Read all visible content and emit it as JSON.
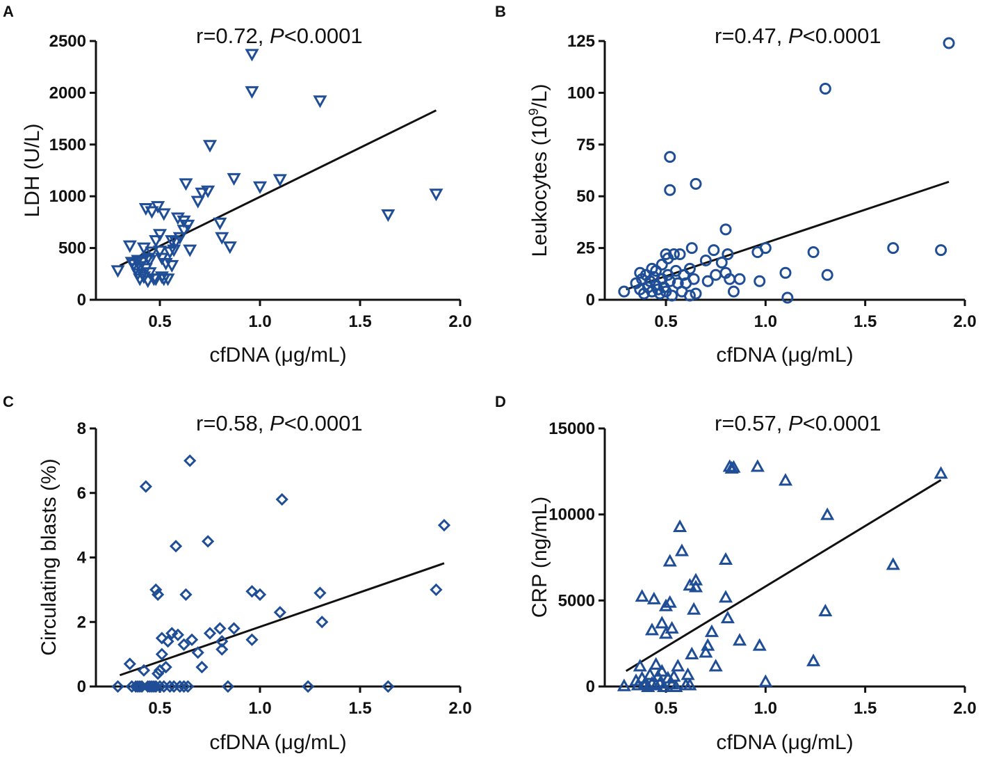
{
  "chart_data": [
    {
      "type": "scatter",
      "panel_label": "A",
      "title": "r=0.72, ",
      "title_p": "P",
      "title_rest": "<0.0001",
      "xlabel": "cfDNA (μg/mL)",
      "ylabel": "LDH (U/L)",
      "ylabel_sup": "",
      "ylabel_tail": "",
      "marker": "triangle-down",
      "xlim": [
        0.2,
        2.0
      ],
      "ylim": [
        0,
        2500
      ],
      "xticks": [
        0.5,
        1.0,
        1.5,
        2.0
      ],
      "xtick_labels": [
        "0.5",
        "1.0",
        "1.5",
        "2.0"
      ],
      "yticks": [
        0,
        500,
        1000,
        1500,
        2000,
        2500
      ],
      "ytick_labels": [
        "0",
        "500",
        "1000",
        "1500",
        "2000",
        "2500"
      ],
      "fit": [
        [
          0.3,
          330
        ],
        [
          1.88,
          1830
        ]
      ],
      "points": [
        [
          0.29,
          280
        ],
        [
          0.35,
          520
        ],
        [
          0.36,
          360
        ],
        [
          0.37,
          340
        ],
        [
          0.38,
          300
        ],
        [
          0.39,
          250
        ],
        [
          0.39,
          380
        ],
        [
          0.4,
          200
        ],
        [
          0.4,
          320
        ],
        [
          0.41,
          360
        ],
        [
          0.42,
          220
        ],
        [
          0.42,
          500
        ],
        [
          0.43,
          300
        ],
        [
          0.43,
          880
        ],
        [
          0.44,
          400
        ],
        [
          0.44,
          180
        ],
        [
          0.45,
          380
        ],
        [
          0.45,
          260
        ],
        [
          0.46,
          850
        ],
        [
          0.46,
          460
        ],
        [
          0.47,
          200
        ],
        [
          0.48,
          570
        ],
        [
          0.48,
          200
        ],
        [
          0.49,
          900
        ],
        [
          0.5,
          630
        ],
        [
          0.5,
          470
        ],
        [
          0.51,
          400
        ],
        [
          0.51,
          220
        ],
        [
          0.52,
          830
        ],
        [
          0.52,
          200
        ],
        [
          0.53,
          350
        ],
        [
          0.54,
          200
        ],
        [
          0.55,
          460
        ],
        [
          0.56,
          570
        ],
        [
          0.56,
          330
        ],
        [
          0.57,
          480
        ],
        [
          0.58,
          560
        ],
        [
          0.59,
          790
        ],
        [
          0.6,
          600
        ],
        [
          0.62,
          670
        ],
        [
          0.62,
          760
        ],
        [
          0.63,
          1120
        ],
        [
          0.64,
          720
        ],
        [
          0.65,
          480
        ],
        [
          0.69,
          950
        ],
        [
          0.71,
          1030
        ],
        [
          0.74,
          1050
        ],
        [
          0.75,
          1490
        ],
        [
          0.8,
          740
        ],
        [
          0.81,
          600
        ],
        [
          0.85,
          510
        ],
        [
          0.87,
          1170
        ],
        [
          0.96,
          2370
        ],
        [
          0.96,
          2010
        ],
        [
          1.0,
          1090
        ],
        [
          1.1,
          1160
        ],
        [
          1.3,
          1920
        ],
        [
          1.64,
          820
        ],
        [
          1.88,
          1020
        ]
      ],
      "colors": {
        "marker": "#1f4e96",
        "line": "#111111"
      }
    },
    {
      "type": "scatter",
      "panel_label": "B",
      "title": "r=0.47, ",
      "title_p": "P",
      "title_rest": "<0.0001",
      "xlabel": "cfDNA (μg/mL)",
      "ylabel": "Leukocytes (10",
      "ylabel_sup": "9",
      "ylabel_tail": "/L)",
      "marker": "circle",
      "xlim": [
        0.2,
        2.0
      ],
      "ylim": [
        0,
        125
      ],
      "xticks": [
        0.5,
        1.0,
        1.5,
        2.0
      ],
      "xtick_labels": [
        "0.5",
        "1.0",
        "1.5",
        "2.0"
      ],
      "yticks": [
        0,
        25,
        50,
        75,
        100,
        125
      ],
      "ytick_labels": [
        "0",
        "25",
        "50",
        "75",
        "100",
        "125"
      ],
      "fit": [
        [
          0.3,
          5
        ],
        [
          1.92,
          57
        ]
      ],
      "points": [
        [
          0.29,
          4
        ],
        [
          0.35,
          8
        ],
        [
          0.37,
          13
        ],
        [
          0.37,
          5
        ],
        [
          0.38,
          10
        ],
        [
          0.39,
          3
        ],
        [
          0.4,
          12
        ],
        [
          0.41,
          6
        ],
        [
          0.42,
          9
        ],
        [
          0.43,
          15
        ],
        [
          0.43,
          4
        ],
        [
          0.44,
          11
        ],
        [
          0.45,
          7
        ],
        [
          0.45,
          14
        ],
        [
          0.46,
          5
        ],
        [
          0.47,
          3
        ],
        [
          0.48,
          10
        ],
        [
          0.48,
          17
        ],
        [
          0.49,
          6
        ],
        [
          0.5,
          22
        ],
        [
          0.5,
          4
        ],
        [
          0.51,
          12
        ],
        [
          0.51,
          20
        ],
        [
          0.52,
          69
        ],
        [
          0.52,
          53
        ],
        [
          0.52,
          9
        ],
        [
          0.53,
          2
        ],
        [
          0.54,
          22
        ],
        [
          0.55,
          14
        ],
        [
          0.56,
          8
        ],
        [
          0.57,
          22
        ],
        [
          0.58,
          4
        ],
        [
          0.59,
          12
        ],
        [
          0.6,
          8
        ],
        [
          0.62,
          15
        ],
        [
          0.62,
          2
        ],
        [
          0.63,
          25
        ],
        [
          0.64,
          10
        ],
        [
          0.65,
          56
        ],
        [
          0.65,
          3
        ],
        [
          0.7,
          19
        ],
        [
          0.71,
          9
        ],
        [
          0.74,
          24
        ],
        [
          0.75,
          12
        ],
        [
          0.78,
          18
        ],
        [
          0.8,
          34
        ],
        [
          0.8,
          13
        ],
        [
          0.81,
          22
        ],
        [
          0.82,
          10
        ],
        [
          0.84,
          4
        ],
        [
          0.87,
          10
        ],
        [
          0.96,
          23
        ],
        [
          0.97,
          9
        ],
        [
          1.0,
          25
        ],
        [
          1.1,
          13
        ],
        [
          1.11,
          1
        ],
        [
          1.24,
          23
        ],
        [
          1.3,
          102
        ],
        [
          1.31,
          12
        ],
        [
          1.64,
          25
        ],
        [
          1.88,
          24
        ],
        [
          1.92,
          124
        ]
      ],
      "colors": {
        "marker": "#1f4e96",
        "line": "#111111"
      }
    },
    {
      "type": "scatter",
      "panel_label": "C",
      "title": "r=0.58, ",
      "title_p": "P",
      "title_rest": "<0.0001",
      "xlabel": "cfDNA (μg/mL)",
      "ylabel": "Circulating blasts (%)",
      "ylabel_sup": "",
      "ylabel_tail": "",
      "marker": "diamond",
      "xlim": [
        0.2,
        2.0
      ],
      "ylim": [
        0,
        8
      ],
      "xticks": [
        0.5,
        1.0,
        1.5,
        2.0
      ],
      "xtick_labels": [
        "0.5",
        "1.0",
        "1.5",
        "2.0"
      ],
      "yticks": [
        0,
        2,
        4,
        6,
        8
      ],
      "ytick_labels": [
        "0",
        "2",
        "4",
        "6",
        "8"
      ],
      "fit": [
        [
          0.3,
          0.35
        ],
        [
          1.92,
          3.82
        ]
      ],
      "points": [
        [
          0.29,
          0
        ],
        [
          0.35,
          0.7
        ],
        [
          0.36,
          0
        ],
        [
          0.38,
          0
        ],
        [
          0.39,
          0
        ],
        [
          0.4,
          0
        ],
        [
          0.41,
          0
        ],
        [
          0.42,
          0.5
        ],
        [
          0.43,
          6.2
        ],
        [
          0.44,
          0
        ],
        [
          0.45,
          0
        ],
        [
          0.46,
          0
        ],
        [
          0.47,
          0
        ],
        [
          0.48,
          3.0
        ],
        [
          0.48,
          0
        ],
        [
          0.49,
          2.85
        ],
        [
          0.49,
          0.4
        ],
        [
          0.5,
          0
        ],
        [
          0.5,
          0.5
        ],
        [
          0.51,
          1.5
        ],
        [
          0.51,
          1.0
        ],
        [
          0.52,
          0
        ],
        [
          0.53,
          0.6
        ],
        [
          0.54,
          1.4
        ],
        [
          0.55,
          0
        ],
        [
          0.56,
          1.65
        ],
        [
          0.57,
          0
        ],
        [
          0.58,
          4.35
        ],
        [
          0.59,
          1.6
        ],
        [
          0.6,
          0
        ],
        [
          0.62,
          1.3
        ],
        [
          0.62,
          0
        ],
        [
          0.63,
          2.85
        ],
        [
          0.64,
          0
        ],
        [
          0.65,
          7.0
        ],
        [
          0.66,
          1.45
        ],
        [
          0.69,
          1.05
        ],
        [
          0.71,
          0.6
        ],
        [
          0.74,
          4.5
        ],
        [
          0.75,
          1.65
        ],
        [
          0.8,
          1.8
        ],
        [
          0.81,
          1.15
        ],
        [
          0.81,
          1.4
        ],
        [
          0.84,
          0
        ],
        [
          0.87,
          1.8
        ],
        [
          0.96,
          2.95
        ],
        [
          0.96,
          1.45
        ],
        [
          1.0,
          2.85
        ],
        [
          1.1,
          2.3
        ],
        [
          1.11,
          5.8
        ],
        [
          1.24,
          0
        ],
        [
          1.3,
          2.9
        ],
        [
          1.31,
          2.0
        ],
        [
          1.64,
          0
        ],
        [
          1.88,
          3.0
        ],
        [
          1.92,
          5.0
        ]
      ],
      "colors": {
        "marker": "#1f4e96",
        "line": "#111111"
      }
    },
    {
      "type": "scatter",
      "panel_label": "D",
      "title": "r=0.57, ",
      "title_p": "P",
      "title_rest": "<0.0001",
      "xlabel": "cfDNA (μg/mL)",
      "ylabel": "CRP (ng/mL)",
      "ylabel_sup": "",
      "ylabel_tail": "",
      "marker": "triangle-up",
      "xlim": [
        0.2,
        2.0
      ],
      "ylim": [
        0,
        15000
      ],
      "xticks": [
        0.5,
        1.0,
        1.5,
        2.0
      ],
      "xtick_labels": [
        "0.5",
        "1.0",
        "1.5",
        "2.0"
      ],
      "yticks": [
        0,
        5000,
        10000,
        15000
      ],
      "ytick_labels": [
        "0",
        "5000",
        "10000",
        "15000"
      ],
      "fit": [
        [
          0.3,
          900
        ],
        [
          1.88,
          12000
        ]
      ],
      "points": [
        [
          0.29,
          50
        ],
        [
          0.35,
          350
        ],
        [
          0.36,
          100
        ],
        [
          0.37,
          1200
        ],
        [
          0.38,
          5250
        ],
        [
          0.38,
          500
        ],
        [
          0.39,
          100
        ],
        [
          0.4,
          200
        ],
        [
          0.41,
          0
        ],
        [
          0.42,
          700
        ],
        [
          0.43,
          3300
        ],
        [
          0.43,
          200
        ],
        [
          0.44,
          5100
        ],
        [
          0.45,
          1300
        ],
        [
          0.45,
          100
        ],
        [
          0.46,
          600
        ],
        [
          0.47,
          200
        ],
        [
          0.48,
          3700
        ],
        [
          0.48,
          900
        ],
        [
          0.49,
          0
        ],
        [
          0.5,
          4700
        ],
        [
          0.5,
          3100
        ],
        [
          0.51,
          500
        ],
        [
          0.52,
          4900
        ],
        [
          0.52,
          7300
        ],
        [
          0.53,
          3400
        ],
        [
          0.53,
          150
        ],
        [
          0.54,
          600
        ],
        [
          0.55,
          0
        ],
        [
          0.56,
          1200
        ],
        [
          0.57,
          9300
        ],
        [
          0.58,
          7900
        ],
        [
          0.6,
          100
        ],
        [
          0.61,
          700
        ],
        [
          0.62,
          5900
        ],
        [
          0.62,
          100
        ],
        [
          0.63,
          1900
        ],
        [
          0.64,
          4500
        ],
        [
          0.65,
          6200
        ],
        [
          0.65,
          5800
        ],
        [
          0.7,
          2000
        ],
        [
          0.71,
          2400
        ],
        [
          0.73,
          3200
        ],
        [
          0.75,
          1200
        ],
        [
          0.8,
          7400
        ],
        [
          0.8,
          5200
        ],
        [
          0.81,
          4000
        ],
        [
          0.82,
          12800
        ],
        [
          0.83,
          12700
        ],
        [
          0.84,
          12750
        ],
        [
          0.87,
          2700
        ],
        [
          0.96,
          12800
        ],
        [
          0.97,
          2400
        ],
        [
          1.0,
          300
        ],
        [
          1.1,
          12000
        ],
        [
          1.24,
          1500
        ],
        [
          1.3,
          4400
        ],
        [
          1.31,
          10000
        ],
        [
          1.64,
          7100
        ],
        [
          1.88,
          12400
        ]
      ],
      "colors": {
        "marker": "#1f4e96",
        "line": "#111111"
      }
    }
  ]
}
